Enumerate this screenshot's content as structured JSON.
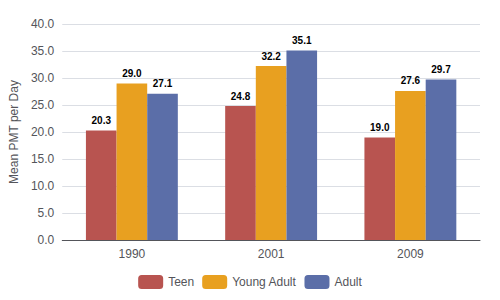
{
  "chart_data": {
    "type": "bar",
    "categories": [
      "1990",
      "2001",
      "2009"
    ],
    "series": [
      {
        "name": "Teen",
        "color": "#b85450",
        "values": [
          20.3,
          24.8,
          19.0
        ],
        "value_labels": [
          "20.3",
          "24.8",
          "19.0"
        ]
      },
      {
        "name": "Young Adult",
        "color": "#e8a020",
        "values": [
          29.0,
          32.2,
          27.6
        ],
        "value_labels": [
          "29.0",
          "32.2",
          "27.6"
        ]
      },
      {
        "name": "Adult",
        "color": "#5b6ea8",
        "values": [
          27.1,
          35.1,
          29.7
        ],
        "value_labels": [
          "27.1",
          "35.1",
          "29.7"
        ]
      }
    ],
    "ylabel": "Mean PMT per Day",
    "ylim": [
      0,
      40
    ],
    "yticks": [
      {
        "value": 0,
        "label": "0.0"
      },
      {
        "value": 5,
        "label": "5.0"
      },
      {
        "value": 10,
        "label": "10.0"
      },
      {
        "value": 15,
        "label": "15.0"
      },
      {
        "value": 20,
        "label": "20.0"
      },
      {
        "value": 25,
        "label": "25.0"
      },
      {
        "value": 30,
        "label": "30.0"
      },
      {
        "value": 35,
        "label": "35.0"
      },
      {
        "value": 40,
        "label": "40.0"
      }
    ],
    "grid": true,
    "legend": "bottom",
    "data_labels": true
  }
}
